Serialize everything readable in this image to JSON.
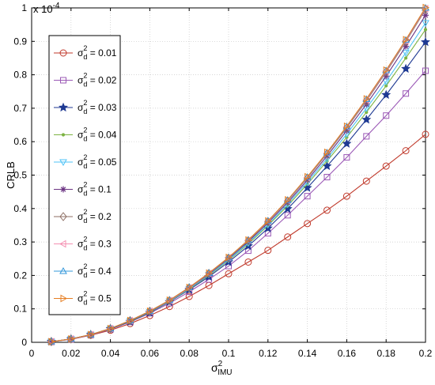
{
  "chart_data": {
    "type": "line",
    "ylabel": "CRLB",
    "xlabel": {
      "base": "σ",
      "sup": "2",
      "sub": "IMU"
    },
    "y_multiplier": {
      "text": "x 10",
      "exponent": "-4"
    },
    "x": [
      0.01,
      0.02,
      0.03,
      0.04,
      0.05,
      0.06,
      0.07,
      0.08,
      0.09,
      0.1,
      0.11,
      0.12,
      0.13,
      0.14,
      0.15,
      0.16,
      0.17,
      0.18,
      0.19,
      0.2
    ],
    "xlim": [
      0,
      0.2
    ],
    "ylim": [
      0,
      1
    ],
    "xticks": [
      "0",
      "0.02",
      "0.04",
      "0.06",
      "0.08",
      "0.1",
      "0.12",
      "0.14",
      "0.16",
      "0.18",
      "0.2"
    ],
    "xtick_values": [
      0,
      0.02,
      0.04,
      0.06,
      0.08,
      0.1,
      0.12,
      0.14,
      0.16,
      0.18,
      0.2
    ],
    "yticks": [
      "0",
      "0.1",
      "0.2",
      "0.3",
      "0.4",
      "0.5",
      "0.6",
      "0.7",
      "0.8",
      "0.9",
      "1"
    ],
    "ytick_values": [
      0,
      0.1,
      0.2,
      0.3,
      0.4,
      0.5,
      0.6,
      0.7,
      0.8,
      0.9,
      1.0
    ],
    "grid": true,
    "legend_position": "top-left",
    "series": [
      {
        "name": "σd² = 0.01",
        "label_pre": "σ",
        "label_sup": "2",
        "label_sub": "d",
        "label_val": " = 0.01",
        "color": "#c0392b",
        "marker": "circle",
        "values": [
          0.002,
          0.009,
          0.021,
          0.036,
          0.056,
          0.08,
          0.107,
          0.137,
          0.17,
          0.205,
          0.24,
          0.275,
          0.315,
          0.355,
          0.395,
          0.437,
          0.482,
          0.527,
          0.573,
          0.622
        ]
      },
      {
        "name": "σd² = 0.02",
        "label_pre": "σ",
        "label_sup": "2",
        "label_sub": "d",
        "label_val": " = 0.02",
        "color": "#9b59b6",
        "marker": "square",
        "values": [
          0.002,
          0.009,
          0.022,
          0.039,
          0.061,
          0.087,
          0.117,
          0.151,
          0.188,
          0.228,
          0.274,
          0.326,
          0.38,
          0.437,
          0.494,
          0.553,
          0.616,
          0.678,
          0.744,
          0.812
        ]
      },
      {
        "name": "σd² = 0.03",
        "label_pre": "σ",
        "label_sup": "2",
        "label_sub": "d",
        "label_val": " = 0.03",
        "color": "#1f3a93",
        "marker": "star",
        "values": [
          0.002,
          0.01,
          0.023,
          0.04,
          0.062,
          0.089,
          0.121,
          0.157,
          0.196,
          0.24,
          0.288,
          0.341,
          0.399,
          0.462,
          0.527,
          0.594,
          0.666,
          0.74,
          0.818,
          0.898
        ]
      },
      {
        "name": "σd² = 0.04",
        "label_pre": "σ",
        "label_sup": "2",
        "label_sub": "d",
        "label_val": " = 0.04",
        "color": "#7cb342",
        "marker": "dot",
        "values": [
          0.002,
          0.01,
          0.023,
          0.041,
          0.063,
          0.09,
          0.122,
          0.159,
          0.2,
          0.245,
          0.294,
          0.349,
          0.408,
          0.473,
          0.542,
          0.613,
          0.688,
          0.767,
          0.85,
          0.935
        ]
      },
      {
        "name": "σd² = 0.05",
        "label_pre": "σ",
        "label_sup": "2",
        "label_sub": "d",
        "label_val": " = 0.05",
        "color": "#4fc3f7",
        "marker": "triangle-down",
        "values": [
          0.002,
          0.01,
          0.023,
          0.041,
          0.064,
          0.091,
          0.123,
          0.16,
          0.202,
          0.247,
          0.297,
          0.352,
          0.413,
          0.479,
          0.549,
          0.623,
          0.7,
          0.78,
          0.866,
          0.955
        ]
      },
      {
        "name": "σd² = 0.1",
        "label_pre": "σ",
        "label_sup": "2",
        "label_sub": "d",
        "label_val": " = 0.1",
        "color": "#6c3483",
        "marker": "asterisk",
        "values": [
          0.002,
          0.01,
          0.023,
          0.041,
          0.064,
          0.092,
          0.124,
          0.162,
          0.204,
          0.25,
          0.301,
          0.357,
          0.418,
          0.485,
          0.557,
          0.633,
          0.712,
          0.796,
          0.885,
          0.978
        ]
      },
      {
        "name": "σd² = 0.2",
        "label_pre": "σ",
        "label_sup": "2",
        "label_sub": "d",
        "label_val": " = 0.2",
        "color": "#8d6e63",
        "marker": "diamond",
        "values": [
          0.002,
          0.01,
          0.023,
          0.041,
          0.065,
          0.093,
          0.125,
          0.163,
          0.206,
          0.252,
          0.304,
          0.361,
          0.423,
          0.491,
          0.564,
          0.641,
          0.722,
          0.808,
          0.899,
          0.995
        ]
      },
      {
        "name": "σd² = 0.3",
        "label_pre": "σ",
        "label_sup": "2",
        "label_sub": "d",
        "label_val": " = 0.3",
        "color": "#f48fb1",
        "marker": "triangle-left",
        "values": [
          0.002,
          0.01,
          0.023,
          0.041,
          0.065,
          0.093,
          0.125,
          0.163,
          0.206,
          0.253,
          0.305,
          0.362,
          0.424,
          0.493,
          0.566,
          0.644,
          0.725,
          0.811,
          0.902,
          0.998
        ]
      },
      {
        "name": "σd² = 0.4",
        "label_pre": "σ",
        "label_sup": "2",
        "label_sub": "d",
        "label_val": " = 0.4",
        "color": "#3498db",
        "marker": "triangle-up",
        "values": [
          0.002,
          0.01,
          0.023,
          0.041,
          0.065,
          0.093,
          0.126,
          0.164,
          0.207,
          0.253,
          0.305,
          0.363,
          0.425,
          0.494,
          0.567,
          0.645,
          0.727,
          0.813,
          0.904,
          1.0
        ]
      },
      {
        "name": "σd² = 0.5",
        "label_pre": "σ",
        "label_sup": "2",
        "label_sub": "d",
        "label_val": " = 0.5",
        "color": "#e67e22",
        "marker": "triangle-right",
        "values": [
          0.002,
          0.01,
          0.023,
          0.041,
          0.065,
          0.093,
          0.126,
          0.164,
          0.207,
          0.254,
          0.306,
          0.363,
          0.426,
          0.495,
          0.568,
          0.646,
          0.728,
          0.814,
          0.905,
          1.001
        ]
      }
    ]
  }
}
